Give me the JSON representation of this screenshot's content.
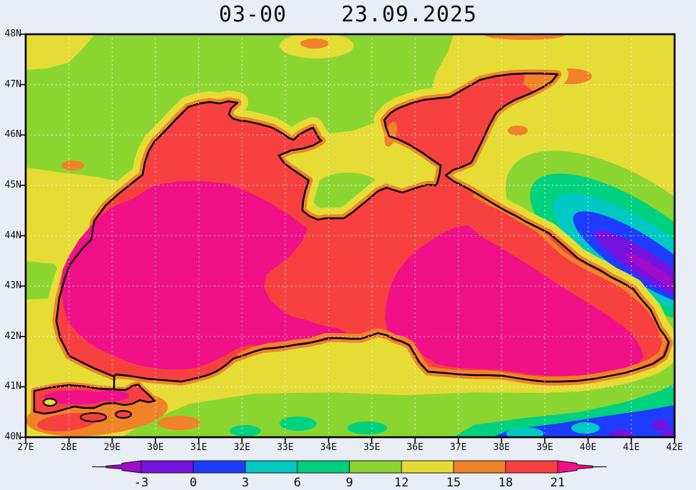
{
  "title": "03-00    23.09.2025",
  "axes": {
    "lat_ticks": [
      "48N",
      "47N",
      "46N",
      "45N",
      "44N",
      "43N",
      "42N",
      "41N",
      "40N"
    ],
    "lon_ticks": [
      "27E",
      "28E",
      "29E",
      "30E",
      "31E",
      "32E",
      "33E",
      "34E",
      "35E",
      "36E",
      "37E",
      "38E",
      "39E",
      "40E",
      "41E",
      "42E"
    ]
  },
  "colorbar": {
    "labels": [
      "-3",
      "0",
      "3",
      "6",
      "9",
      "12",
      "15",
      "18",
      "21"
    ],
    "colors": [
      "#A00CC8",
      "#7412DE",
      "#1E3CFF",
      "#00C9C4",
      "#00D17E",
      "#8BD531",
      "#E6DC36",
      "#F08228",
      "#F64040",
      "#F01087"
    ]
  },
  "palette": {
    "background": "#E9EDF6",
    "plot_frame": "#000000",
    "coastline": "#000000",
    "grid_dots": "#FFEFEF",
    "band_below_m3": "#A00CC8",
    "band_m3_0": "#7412DE",
    "band_0_3": "#1E3CFF",
    "band_3_6": "#00C9C4",
    "band_6_9": "#00D17E",
    "band_9_12": "#8BD531",
    "band_12_15": "#E6DC36",
    "band_15_18": "#F08228",
    "band_18_21": "#F64040",
    "band_above_21": "#F01087"
  },
  "chart_data": {
    "type": "heatmap",
    "title": "03-00    23.09.2025",
    "x_tick_labels": [
      "27E",
      "28E",
      "29E",
      "30E",
      "31E",
      "32E",
      "33E",
      "34E",
      "35E",
      "36E",
      "37E",
      "38E",
      "39E",
      "40E",
      "41E",
      "42E"
    ],
    "y_tick_labels": [
      "48N",
      "47N",
      "46N",
      "45N",
      "44N",
      "43N",
      "42N",
      "41N",
      "40N"
    ],
    "contour_levels": [
      -3,
      0,
      3,
      6,
      9,
      12,
      15,
      18,
      21
    ],
    "level_colors": [
      "#A00CC8",
      "#7412DE",
      "#1E3CFF",
      "#00C9C4",
      "#00D17E",
      "#8BD531",
      "#E6DC36",
      "#F08228",
      "#F64040",
      "#F01087"
    ],
    "legend_position": "bottom",
    "grid": true
  }
}
